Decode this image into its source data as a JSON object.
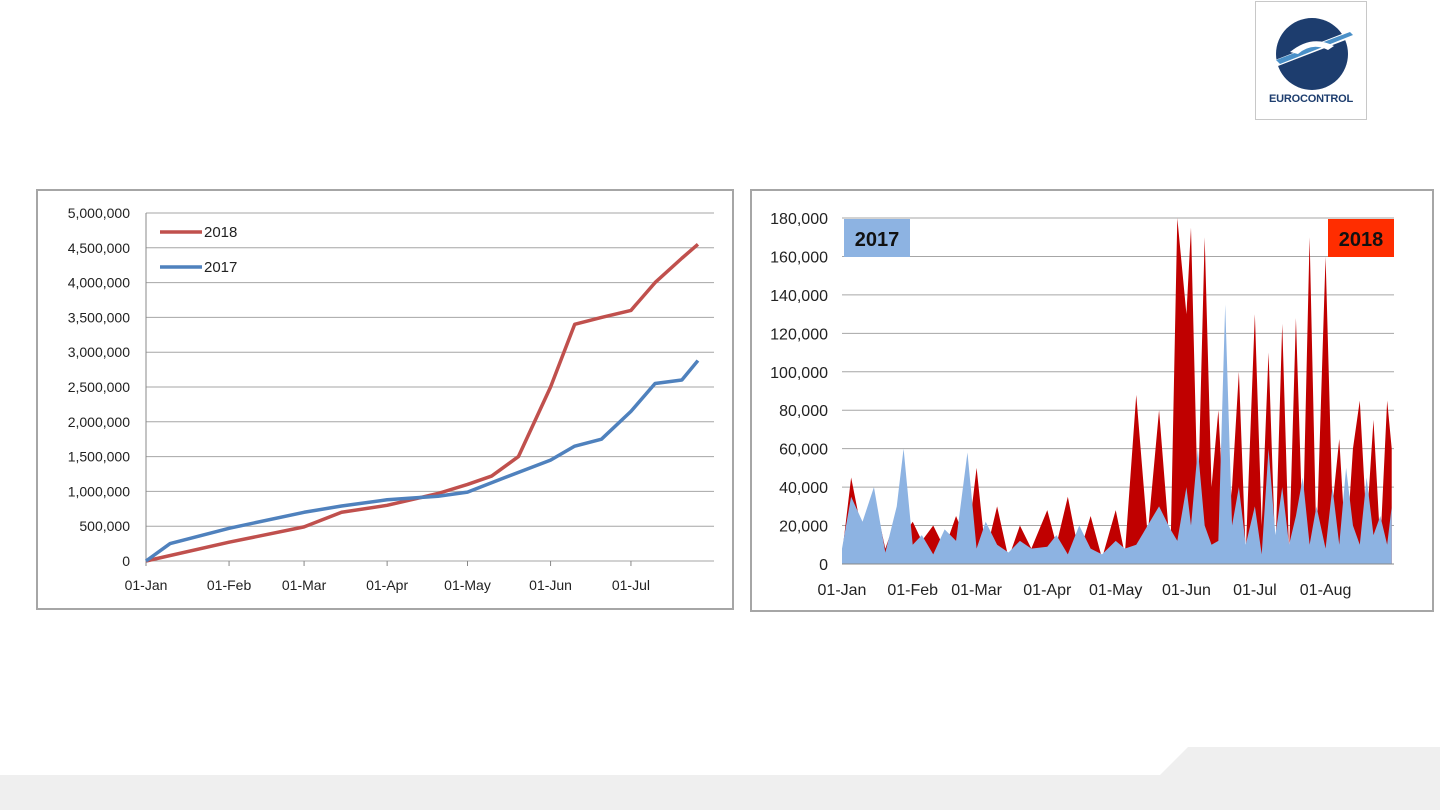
{
  "logo": {
    "text": "EUROCONTROL",
    "icon": "eurocontrol-logo-icon"
  },
  "colors": {
    "series_2018_line": "#c0504d",
    "series_2017_line": "#4f81bd",
    "area_2018": "#c00000",
    "area_2017": "#8db3e2",
    "badge_2017": "#8db3e2",
    "badge_2018": "#ff2d00",
    "grid": "#a6a6a6"
  },
  "chart_data": [
    {
      "type": "line",
      "title": "",
      "xlabel": "",
      "ylabel": "",
      "ylim": [
        0,
        5000000
      ],
      "yticks": [
        "5,000,000",
        "4,500,000",
        "4,000,000",
        "3,500,000",
        "3,000,000",
        "2,500,000",
        "2,000,000",
        "1,500,000",
        "1,000,000",
        "500,000",
        "0"
      ],
      "xticks": [
        "01-Jan",
        "01-Feb",
        "01-Mar",
        "01-Apr",
        "01-May",
        "01-Jun",
        "01-Jul"
      ],
      "grid": "horizontal",
      "legend_position": "top-left",
      "series": [
        {
          "name": "2018",
          "x": [
            "01-Jan",
            "01-Feb",
            "01-Mar",
            "15-Mar",
            "01-Apr",
            "20-Apr",
            "01-May",
            "10-May",
            "20-May",
            "01-Jun",
            "05-Jun",
            "10-Jun",
            "20-Jun",
            "01-Jul",
            "10-Jul",
            "20-Jul",
            "26-Jul"
          ],
          "values": [
            0,
            270000,
            490000,
            700000,
            800000,
            970000,
            1100000,
            1220000,
            1500000,
            2500000,
            2900000,
            3400000,
            3500000,
            3600000,
            4000000,
            4350000,
            4550000
          ]
        },
        {
          "name": "2017",
          "x": [
            "01-Jan",
            "10-Jan",
            "01-Feb",
            "01-Mar",
            "15-Mar",
            "01-Apr",
            "20-Apr",
            "01-May",
            "15-May",
            "01-Jun",
            "10-Jun",
            "20-Jun",
            "01-Jul",
            "10-Jul",
            "20-Jul",
            "26-Jul"
          ],
          "values": [
            0,
            250000,
            470000,
            700000,
            790000,
            880000,
            930000,
            990000,
            1200000,
            1450000,
            1650000,
            1750000,
            2150000,
            2550000,
            2600000,
            2880000
          ]
        }
      ]
    },
    {
      "type": "area",
      "title": "",
      "xlabel": "",
      "ylabel": "",
      "ylim": [
        0,
        180000
      ],
      "yticks": [
        "180,000",
        "160,000",
        "140,000",
        "120,000",
        "100,000",
        "80,000",
        "60,000",
        "40,000",
        "20,000",
        "0"
      ],
      "xticks": [
        "01-Jan",
        "01-Feb",
        "01-Mar",
        "01-Apr",
        "01-May",
        "01-Jun",
        "01-Jul",
        "01-Aug"
      ],
      "grid": "horizontal",
      "badges": [
        "2017",
        "2018"
      ],
      "x": [
        "01-Jan",
        "05-Jan",
        "10-Jan",
        "15-Jan",
        "20-Jan",
        "25-Jan",
        "28-Jan",
        "01-Feb",
        "05-Feb",
        "10-Feb",
        "15-Feb",
        "20-Feb",
        "25-Feb",
        "01-Mar",
        "05-Mar",
        "10-Mar",
        "15-Mar",
        "20-Mar",
        "25-Mar",
        "01-Apr",
        "05-Apr",
        "10-Apr",
        "15-Apr",
        "20-Apr",
        "25-Apr",
        "01-May",
        "05-May",
        "10-May",
        "15-May",
        "20-May",
        "25-May",
        "28-May",
        "01-Jun",
        "03-Jun",
        "06-Jun",
        "09-Jun",
        "12-Jun",
        "15-Jun",
        "18-Jun",
        "21-Jun",
        "24-Jun",
        "27-Jun",
        "01-Jul",
        "04-Jul",
        "07-Jul",
        "10-Jul",
        "13-Jul",
        "16-Jul",
        "19-Jul",
        "22-Jul",
        "25-Jul",
        "28-Jul",
        "01-Aug",
        "04-Aug",
        "07-Aug",
        "10-Aug",
        "13-Aug",
        "16-Aug",
        "19-Aug",
        "22-Aug",
        "25-Aug",
        "28-Aug",
        "30-Aug"
      ],
      "series": [
        {
          "name": "2017",
          "values": [
            8000,
            35000,
            22000,
            40000,
            6000,
            30000,
            60000,
            10000,
            15000,
            5000,
            18000,
            12000,
            58000,
            8000,
            22000,
            10000,
            6000,
            12000,
            8000,
            9000,
            15000,
            5000,
            20000,
            8000,
            5000,
            12000,
            8000,
            10000,
            20000,
            30000,
            18000,
            12000,
            40000,
            20000,
            60000,
            20000,
            10000,
            12000,
            135000,
            20000,
            40000,
            10000,
            30000,
            5000,
            60000,
            15000,
            40000,
            10000,
            25000,
            45000,
            10000,
            30000,
            8000,
            40000,
            10000,
            50000,
            20000,
            10000,
            45000,
            15000,
            25000,
            10000,
            30000
          ]
        },
        {
          "name": "2018",
          "values": [
            5000,
            45000,
            15000,
            35000,
            8000,
            25000,
            15000,
            22000,
            12000,
            20000,
            8000,
            25000,
            10000,
            50000,
            5000,
            30000,
            3000,
            20000,
            8000,
            28000,
            10000,
            35000,
            5000,
            25000,
            3000,
            28000,
            5000,
            88000,
            15000,
            80000,
            5000,
            180000,
            130000,
            175000,
            30000,
            170000,
            40000,
            80000,
            10000,
            40000,
            100000,
            5000,
            130000,
            20000,
            110000,
            5000,
            125000,
            5000,
            128000,
            15000,
            170000,
            10000,
            160000,
            30000,
            65000,
            5000,
            60000,
            85000,
            20000,
            75000,
            10000,
            85000,
            60000
          ]
        }
      ]
    }
  ]
}
